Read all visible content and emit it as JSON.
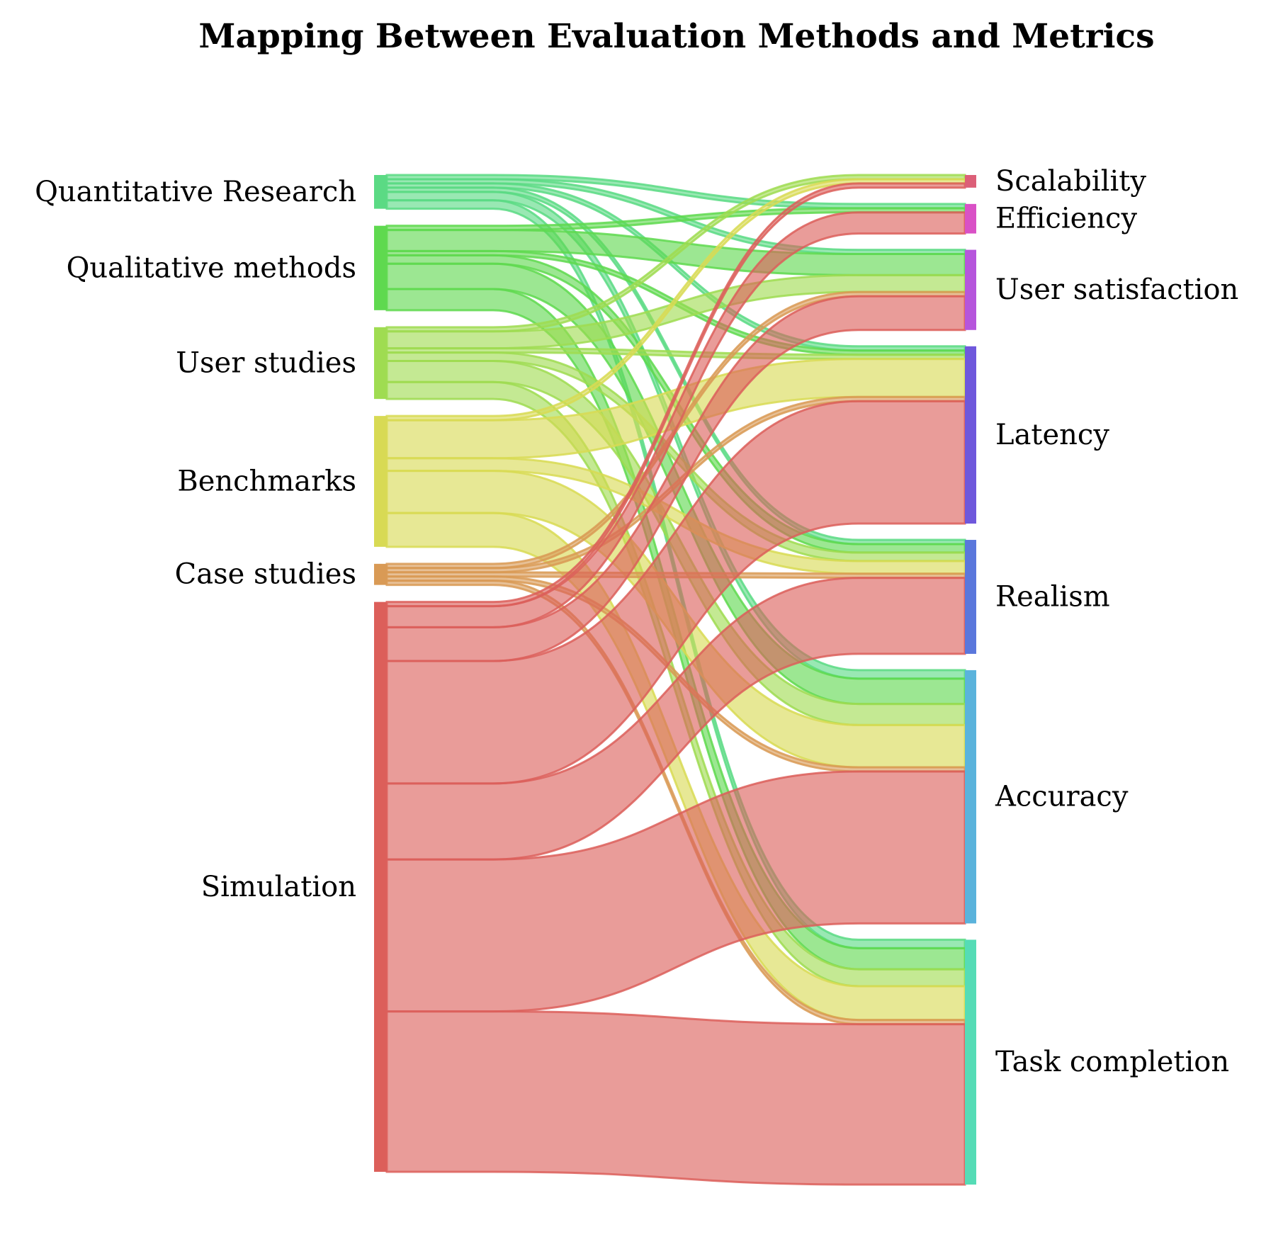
{
  "chart_data": {
    "type": "sankey",
    "title": "Mapping Between Evaluation Methods and Metrics",
    "sources": [
      {
        "name": "Quantitative Research",
        "color": "#5bda84"
      },
      {
        "name": "Qualitative methods",
        "color": "#5fd94f"
      },
      {
        "name": "User studies",
        "color": "#9fdc51"
      },
      {
        "name": "Benchmarks",
        "color": "#d8da54"
      },
      {
        "name": "Case studies",
        "color": "#d99a55"
      },
      {
        "name": "Simulation",
        "color": "#dc5f5a"
      }
    ],
    "targets": [
      {
        "name": "Scalability",
        "color": "#dc5f78"
      },
      {
        "name": "Efficiency",
        "color": "#d951c6"
      },
      {
        "name": "User satisfaction",
        "color": "#b655dc"
      },
      {
        "name": "Latency",
        "color": "#6f58dc"
      },
      {
        "name": "Realism",
        "color": "#5a77dc"
      },
      {
        "name": "Accuracy",
        "color": "#5ab3dc"
      },
      {
        "name": "Task completion",
        "color": "#55dcb6"
      }
    ],
    "links": [
      {
        "source": "Quantitative Research",
        "target": "Efficiency",
        "value": 1
      },
      {
        "source": "Quantitative Research",
        "target": "User satisfaction",
        "value": 1
      },
      {
        "source": "Quantitative Research",
        "target": "Latency",
        "value": 1
      },
      {
        "source": "Quantitative Research",
        "target": "Realism",
        "value": 1
      },
      {
        "source": "Quantitative Research",
        "target": "Accuracy",
        "value": 2
      },
      {
        "source": "Quantitative Research",
        "target": "Task completion",
        "value": 2
      },
      {
        "source": "Qualitative methods",
        "target": "Efficiency",
        "value": 1
      },
      {
        "source": "Qualitative methods",
        "target": "User satisfaction",
        "value": 5
      },
      {
        "source": "Qualitative methods",
        "target": "Latency",
        "value": 1
      },
      {
        "source": "Qualitative methods",
        "target": "Realism",
        "value": 2
      },
      {
        "source": "Qualitative methods",
        "target": "Accuracy",
        "value": 6
      },
      {
        "source": "Qualitative methods",
        "target": "Task completion",
        "value": 5
      },
      {
        "source": "User studies",
        "target": "Scalability",
        "value": 1
      },
      {
        "source": "User studies",
        "target": "User satisfaction",
        "value": 4
      },
      {
        "source": "User studies",
        "target": "Latency",
        "value": 1
      },
      {
        "source": "User studies",
        "target": "Realism",
        "value": 2
      },
      {
        "source": "User studies",
        "target": "Accuracy",
        "value": 5
      },
      {
        "source": "User studies",
        "target": "Task completion",
        "value": 4
      },
      {
        "source": "Benchmarks",
        "target": "Scalability",
        "value": 1
      },
      {
        "source": "Benchmarks",
        "target": "Latency",
        "value": 9
      },
      {
        "source": "Benchmarks",
        "target": "Realism",
        "value": 3
      },
      {
        "source": "Benchmarks",
        "target": "Accuracy",
        "value": 10
      },
      {
        "source": "Benchmarks",
        "target": "Task completion",
        "value": 8
      },
      {
        "source": "Case studies",
        "target": "User satisfaction",
        "value": 1
      },
      {
        "source": "Case studies",
        "target": "Latency",
        "value": 1
      },
      {
        "source": "Case studies",
        "target": "Realism",
        "value": 1
      },
      {
        "source": "Case studies",
        "target": "Accuracy",
        "value": 1
      },
      {
        "source": "Case studies",
        "target": "Task completion",
        "value": 1
      },
      {
        "source": "Simulation",
        "target": "Scalability",
        "value": 1
      },
      {
        "source": "Simulation",
        "target": "Efficiency",
        "value": 5
      },
      {
        "source": "Simulation",
        "target": "User satisfaction",
        "value": 8
      },
      {
        "source": "Simulation",
        "target": "Latency",
        "value": 29
      },
      {
        "source": "Simulation",
        "target": "Realism",
        "value": 18
      },
      {
        "source": "Simulation",
        "target": "Accuracy",
        "value": 36
      },
      {
        "source": "Simulation",
        "target": "Task completion",
        "value": 38
      }
    ]
  }
}
